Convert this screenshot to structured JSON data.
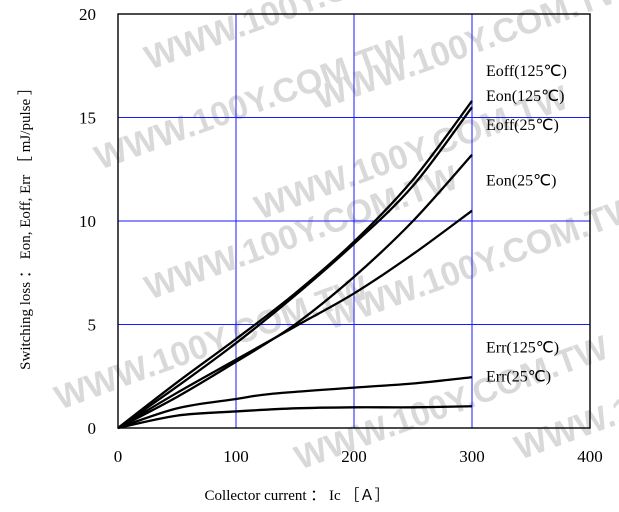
{
  "chart_data": {
    "type": "line",
    "xlabel": "Collector current ： Ic ［Ａ］",
    "ylabel": "Switching loss ： Eon, Eoff, Err ［ mJ/pulse ］",
    "xlim": [
      0,
      400
    ],
    "ylim": [
      0,
      20
    ],
    "xticks": [
      0,
      100,
      200,
      300,
      400
    ],
    "yticks": [
      0,
      5,
      10,
      15,
      20
    ],
    "grid": true,
    "colors": {
      "grid": "#1a1aff",
      "frame": "#000000",
      "line": "#000000",
      "watermark": "#d9d9d9"
    },
    "watermark": "WWW.100Y.COM.TW",
    "series": [
      {
        "name": "Eoff(125℃)",
        "points": [
          [
            0,
            0
          ],
          [
            50,
            2.2
          ],
          [
            100,
            4.3
          ],
          [
            150,
            6.5
          ],
          [
            200,
            9.0
          ],
          [
            250,
            12.0
          ],
          [
            300,
            15.8
          ]
        ]
      },
      {
        "name": "Eon(125℃)",
        "points": [
          [
            0,
            0
          ],
          [
            50,
            2.0
          ],
          [
            100,
            4.1
          ],
          [
            150,
            6.4
          ],
          [
            200,
            8.9
          ],
          [
            250,
            11.7
          ],
          [
            300,
            15.5
          ]
        ]
      },
      {
        "name": "Eoff(25℃)",
        "points": [
          [
            0,
            0
          ],
          [
            50,
            1.5
          ],
          [
            100,
            3.2
          ],
          [
            150,
            5.0
          ],
          [
            200,
            7.3
          ],
          [
            250,
            10.0
          ],
          [
            300,
            13.2
          ]
        ]
      },
      {
        "name": "Eon(25℃)",
        "points": [
          [
            0,
            0
          ],
          [
            50,
            1.7
          ],
          [
            100,
            3.3
          ],
          [
            150,
            4.9
          ],
          [
            200,
            6.5
          ],
          [
            250,
            8.4
          ],
          [
            300,
            10.5
          ]
        ]
      },
      {
        "name": "Err(125℃)",
        "points": [
          [
            0,
            0
          ],
          [
            50,
            0.95
          ],
          [
            100,
            1.4
          ],
          [
            130,
            1.65
          ],
          [
            200,
            1.95
          ],
          [
            250,
            2.15
          ],
          [
            300,
            2.45
          ]
        ]
      },
      {
        "name": "Err(25℃)",
        "points": [
          [
            0,
            0
          ],
          [
            50,
            0.6
          ],
          [
            100,
            0.8
          ],
          [
            150,
            0.95
          ],
          [
            200,
            1.0
          ],
          [
            250,
            1.0
          ],
          [
            300,
            1.05
          ]
        ]
      }
    ]
  }
}
